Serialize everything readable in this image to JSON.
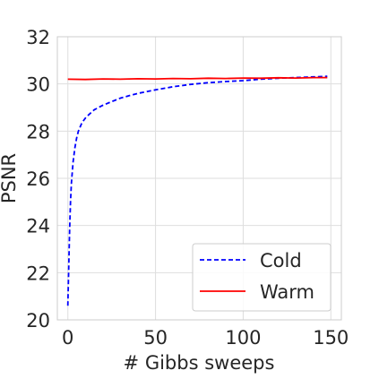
{
  "chart_data": {
    "type": "line",
    "title": "",
    "xlabel": "# Gibbs sweeps",
    "ylabel": "PSNR",
    "xlim": [
      -6,
      156
    ],
    "ylim": [
      20,
      32
    ],
    "xticks": [
      0,
      50,
      100,
      150
    ],
    "yticks": [
      20,
      22,
      24,
      26,
      28,
      30,
      32
    ],
    "grid": true,
    "legend_position": "lower-right",
    "series": [
      {
        "name": "Cold",
        "color": "#0000ff",
        "style": "dashed",
        "x": [
          0,
          0.5,
          1,
          1.5,
          2,
          3,
          4,
          5,
          6,
          8,
          10,
          12,
          15,
          20,
          25,
          30,
          35,
          40,
          50,
          60,
          70,
          80,
          90,
          100,
          110,
          120,
          130,
          140,
          148
        ],
        "y": [
          20.6,
          22.2,
          23.8,
          25.0,
          25.8,
          26.7,
          27.3,
          27.7,
          28.0,
          28.35,
          28.55,
          28.7,
          28.9,
          29.1,
          29.25,
          29.4,
          29.5,
          29.6,
          29.75,
          29.88,
          29.98,
          30.05,
          30.1,
          30.14,
          30.2,
          30.24,
          30.27,
          30.3,
          30.32
        ]
      },
      {
        "name": "Warm",
        "color": "#ff0000",
        "style": "solid",
        "x": [
          0,
          10,
          20,
          30,
          40,
          50,
          60,
          70,
          80,
          90,
          100,
          110,
          120,
          130,
          140,
          148
        ],
        "y": [
          30.2,
          30.19,
          30.21,
          30.2,
          30.22,
          30.21,
          30.23,
          30.22,
          30.24,
          30.23,
          30.25,
          30.24,
          30.26,
          30.25,
          30.27,
          30.27
        ]
      }
    ]
  }
}
